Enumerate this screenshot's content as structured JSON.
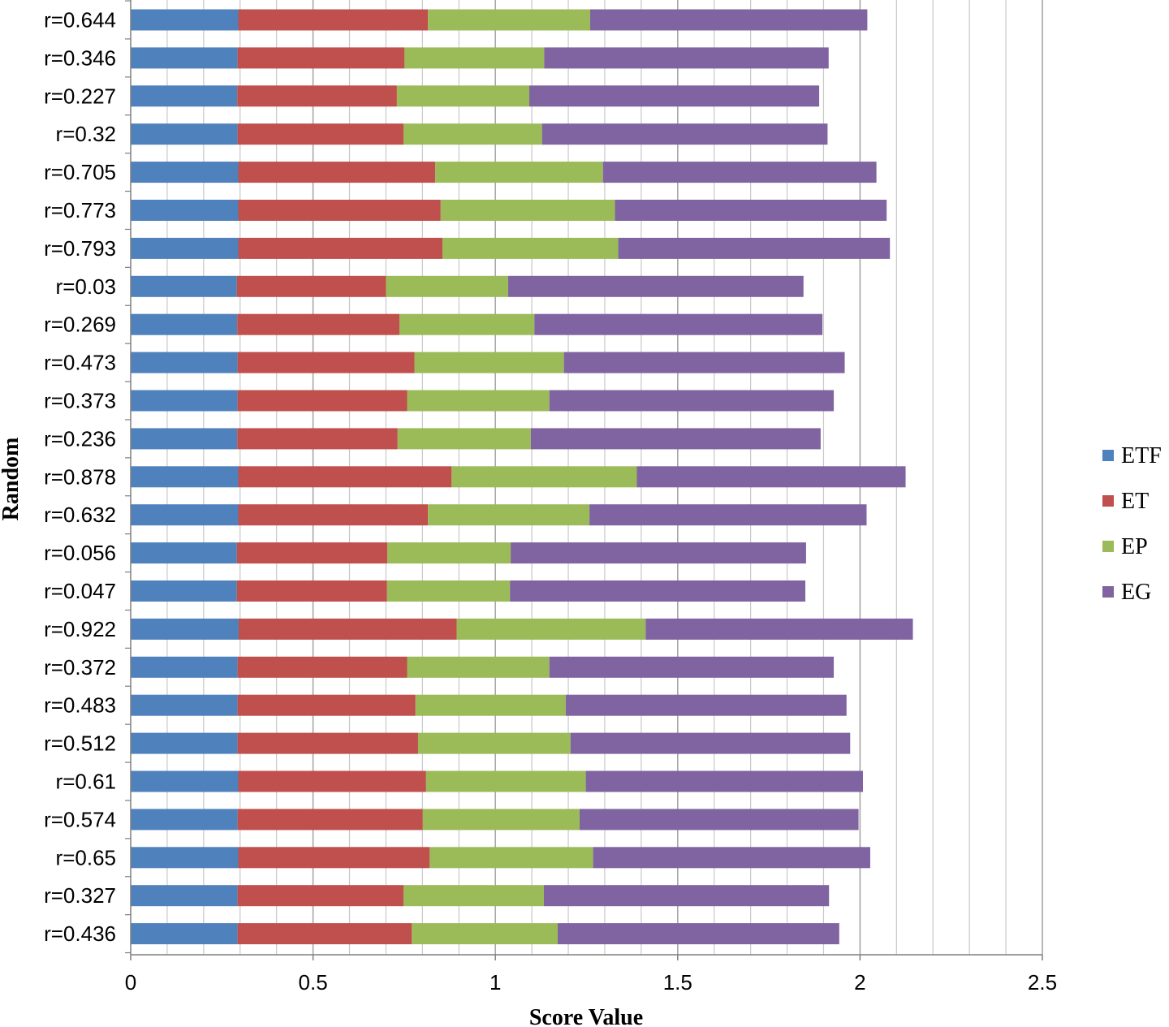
{
  "chart_data": {
    "type": "bar",
    "orientation": "horizontal",
    "stacked": true,
    "title": "",
    "xlabel": "Score Value",
    "ylabel": "Random",
    "xlim": [
      0,
      2.5
    ],
    "x_ticks": [
      "0",
      "0.5",
      "1",
      "1.5",
      "2",
      "2.5"
    ],
    "minor_gridlines": true,
    "legend_position": "right",
    "categories": [
      "r=0.644",
      "r=0.346",
      "r=0.227",
      "r=0.32",
      "r=0.705",
      "r=0.773",
      "r=0.793",
      "r=0.03",
      "r=0.269",
      "r=0.473",
      "r=0.373",
      "r=0.236",
      "r=0.878",
      "r=0.632",
      "r=0.056",
      "r=0.047",
      "r=0.922",
      "r=0.372",
      "r=0.483",
      "r=0.512",
      "r=0.61",
      "r=0.574",
      "r=0.65",
      "r=0.327",
      "r=0.436"
    ],
    "series": [
      {
        "name": "ETF",
        "color": "#4F81BD",
        "values": [
          0.295,
          0.293,
          0.292,
          0.293,
          0.295,
          0.295,
          0.295,
          0.291,
          0.292,
          0.293,
          0.293,
          0.292,
          0.295,
          0.295,
          0.291,
          0.291,
          0.296,
          0.293,
          0.293,
          0.293,
          0.295,
          0.293,
          0.295,
          0.293,
          0.293
        ]
      },
      {
        "name": "ET",
        "color": "#C0504D",
        "values": [
          0.52,
          0.458,
          0.438,
          0.455,
          0.54,
          0.555,
          0.56,
          0.409,
          0.445,
          0.485,
          0.465,
          0.44,
          0.585,
          0.52,
          0.413,
          0.412,
          0.598,
          0.465,
          0.488,
          0.495,
          0.515,
          0.508,
          0.525,
          0.455,
          0.478
        ]
      },
      {
        "name": "EP",
        "color": "#9BBB59",
        "values": [
          0.445,
          0.383,
          0.363,
          0.38,
          0.46,
          0.478,
          0.482,
          0.335,
          0.37,
          0.41,
          0.39,
          0.365,
          0.508,
          0.443,
          0.338,
          0.337,
          0.518,
          0.39,
          0.412,
          0.418,
          0.438,
          0.43,
          0.448,
          0.385,
          0.4
        ]
      },
      {
        "name": "EG",
        "color": "#8064A2",
        "values": [
          0.76,
          0.78,
          0.795,
          0.783,
          0.75,
          0.745,
          0.745,
          0.81,
          0.79,
          0.77,
          0.78,
          0.795,
          0.737,
          0.76,
          0.81,
          0.81,
          0.733,
          0.78,
          0.77,
          0.767,
          0.76,
          0.765,
          0.76,
          0.782,
          0.772
        ]
      }
    ]
  }
}
